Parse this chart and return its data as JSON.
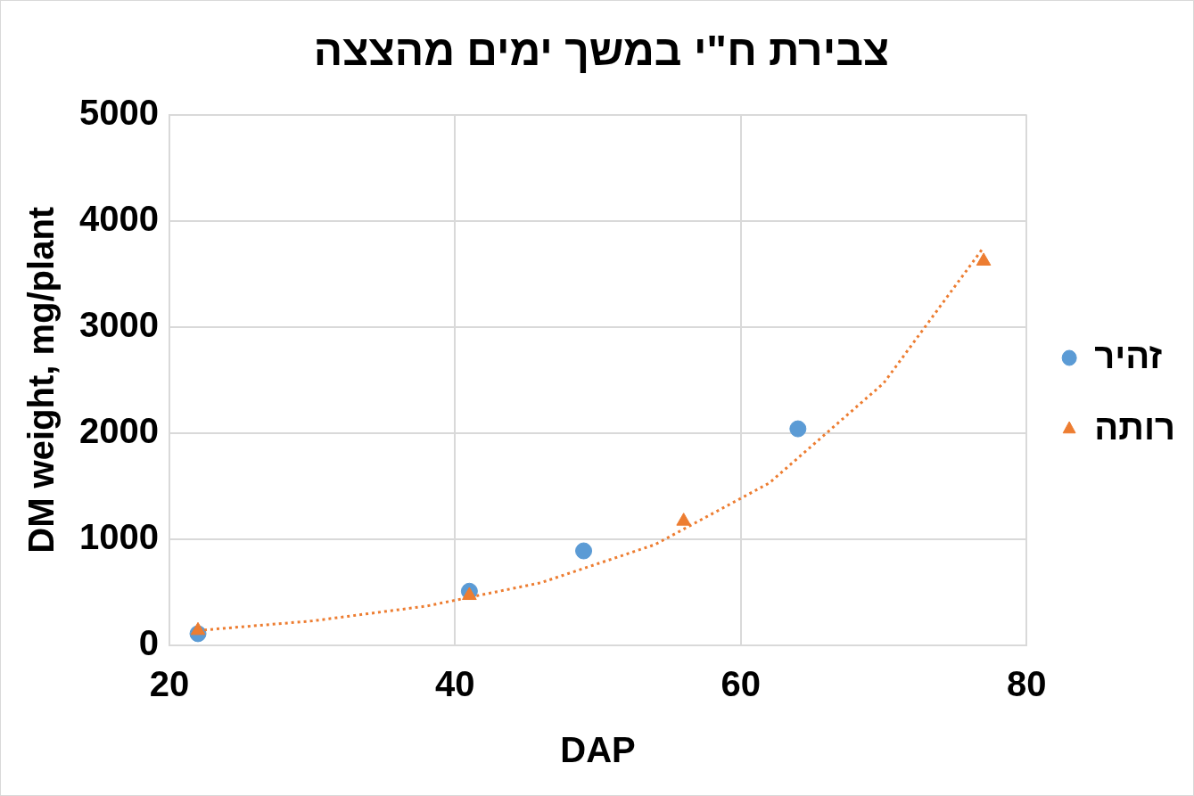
{
  "chart_data": {
    "type": "scatter",
    "title": "צבירת ח\"י במשך ימים מהצצה",
    "xlabel": "DAP",
    "ylabel": "DM weight, mg/plant",
    "xlim": [
      20,
      80
    ],
    "xticks": [
      20,
      40,
      60,
      80
    ],
    "ylim": [
      0,
      5000
    ],
    "yticks": [
      0,
      1000,
      2000,
      3000,
      4000,
      5000
    ],
    "grid": true,
    "legend": "right",
    "series": [
      {
        "name": "זהיר",
        "color": "#5b9bd5",
        "marker": "circle",
        "x": [
          22,
          41,
          49,
          64
        ],
        "values": [
          110,
          510,
          890,
          2040
        ]
      },
      {
        "name": "רותה",
        "color": "#ed7d31",
        "marker": "triangle",
        "x": [
          22,
          41,
          56,
          77
        ],
        "values": [
          140,
          470,
          1170,
          3620
        ]
      },
      {
        "type": "line",
        "color": "#ed7d31",
        "marker": "none",
        "line_style": "dotted",
        "x": [
          22,
          30,
          38,
          46,
          54,
          62,
          70,
          77
        ],
        "values": [
          140,
          230,
          370,
          590,
          950,
          1530,
          2470,
          3750
        ]
      }
    ]
  }
}
